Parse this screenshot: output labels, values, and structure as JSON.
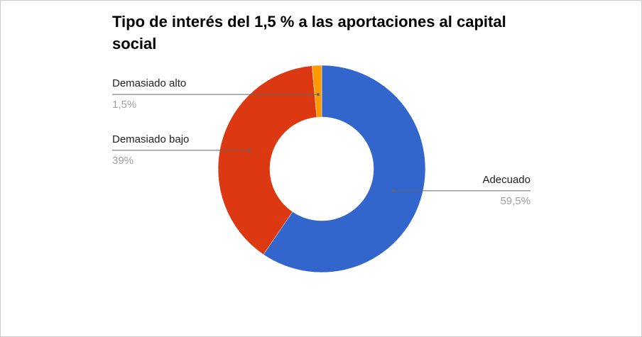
{
  "chart_data": {
    "type": "donut",
    "title": "Tipo de interés del 1,5 % a las aportaciones al capital social",
    "categories": [
      "Adecuado",
      "Demasiado bajo",
      "Demasiado alto"
    ],
    "values": [
      59.5,
      39,
      1.5
    ],
    "value_labels": [
      "59,5%",
      "39%",
      "1,5%"
    ],
    "colors": [
      "#3366cc",
      "#dc3912",
      "#ff9900"
    ]
  }
}
